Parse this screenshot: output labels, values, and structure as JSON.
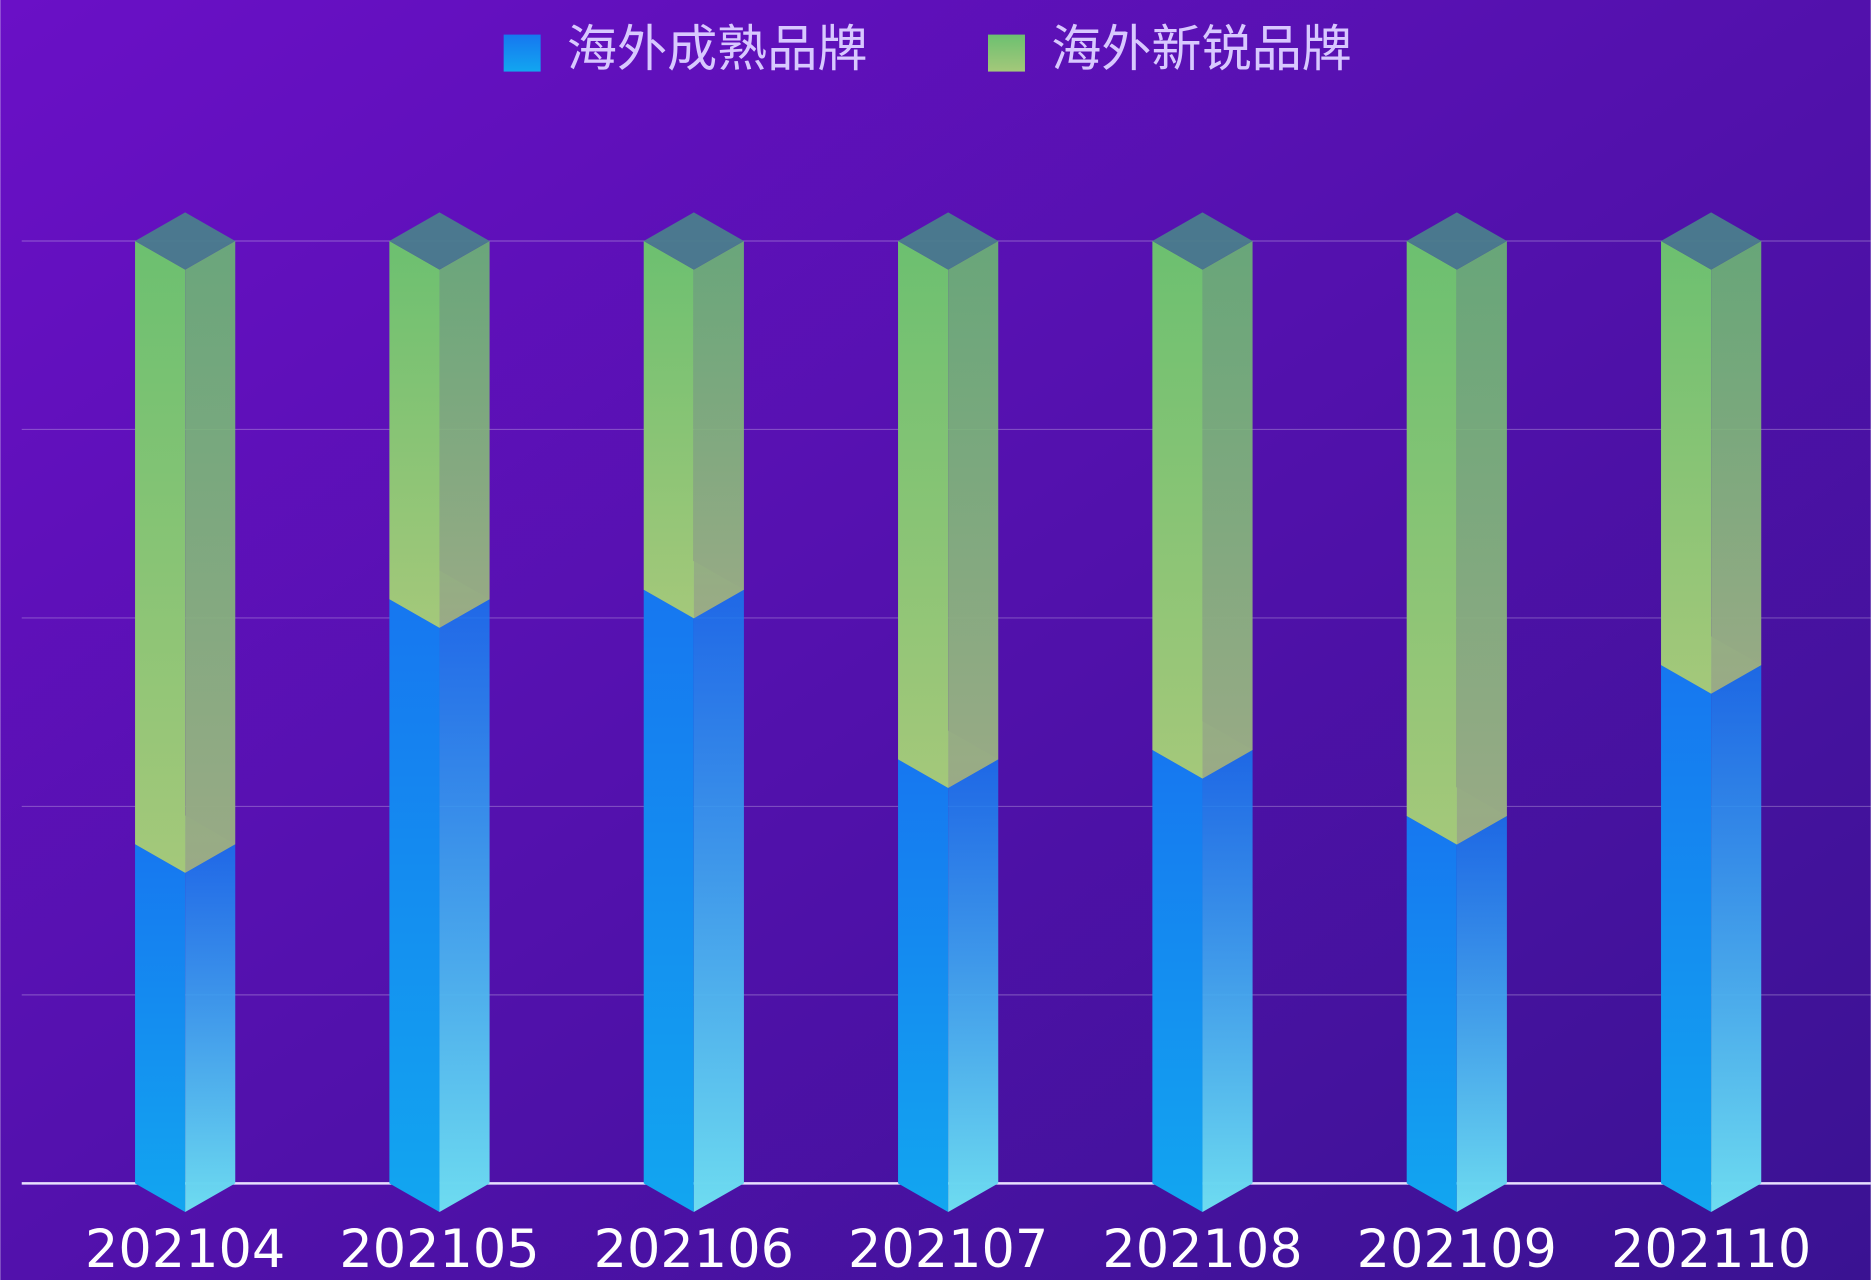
{
  "chart_data": {
    "type": "bar",
    "stacked": true,
    "categories": [
      "202104",
      "202105",
      "202106",
      "202107",
      "202108",
      "202109",
      "202110"
    ],
    "series": [
      {
        "name": "海外成熟品牌",
        "color": "#1677f0",
        "values": [
          36,
          62,
          63,
          45,
          46,
          39,
          55
        ]
      },
      {
        "name": "海外新锐品牌",
        "color": "#6cc070",
        "values": [
          64,
          38,
          37,
          55,
          54,
          61,
          45
        ]
      }
    ],
    "ylim": [
      0,
      100
    ],
    "yticks": [
      0,
      20,
      40,
      60,
      80,
      100
    ],
    "grid": true,
    "legend": "top"
  }
}
